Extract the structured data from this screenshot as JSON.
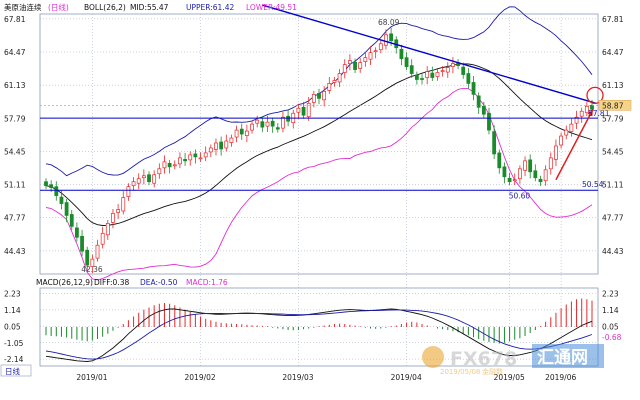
{
  "header": {
    "symbol": "美原油连续",
    "period_tag": "(日线)",
    "boll_label": "BOLL(26,2)",
    "mid": "MID:55.47",
    "upper": "UPPER:61.42",
    "lower": "LOWER:49.51"
  },
  "macd_header": {
    "label": "MACD(26,12,9)",
    "diff": "DIFF:0.38",
    "dea": "DEA:-0.50",
    "macd": "MACD:1.76"
  },
  "footer_tag": "日线",
  "watermark": {
    "brand": "FX678",
    "cn_brand": "汇通网",
    "date": "2019/05/08",
    "sub": "金融数"
  },
  "colors": {
    "up": "#e8282a",
    "down": "#1a8a2a",
    "upper_band": "#1c1ca8",
    "mid_band": "#111111",
    "lower_band": "#e030d0",
    "trend": "#0000cc",
    "arrow": "#e02020",
    "diff": "#111111",
    "dea": "#1c1ca8",
    "grid": "#9aa8c0"
  },
  "chart_data": [
    {
      "type": "candlestick",
      "ylim": [
        42.1,
        68.3
      ],
      "yticks": [
        "67.81",
        "64.47",
        "61.13",
        "57.79",
        "54.45",
        "51.11",
        "47.77",
        "44.43"
      ],
      "xticks": [
        "2019/01",
        "2019/02",
        "2019/03",
        "2019/04",
        "2019/05",
        "2019/06"
      ],
      "close": [
        51.0,
        50.8,
        50.0,
        49.2,
        48.0,
        46.9,
        45.8,
        44.4,
        43.0,
        43.6,
        45.0,
        46.2,
        47.2,
        48.2,
        48.6,
        49.8,
        50.9,
        51.4,
        51.7,
        52.0,
        51.4,
        52.1,
        52.7,
        53.4,
        52.9,
        53.1,
        53.8,
        53.5,
        54.1,
        53.9,
        53.8,
        54.3,
        54.8,
        55.3,
        54.7,
        55.5,
        55.8,
        56.6,
        56.2,
        56.5,
        57.2,
        57.6,
        56.9,
        57.4,
        57.0,
        56.7,
        57.9,
        57.5,
        58.3,
        58.8,
        58.1,
        59.3,
        60.2,
        59.8,
        60.5,
        61.3,
        61.6,
        62.3,
        63.2,
        63.6,
        62.7,
        63.4,
        63.9,
        64.4,
        64.6,
        65.3,
        66.2,
        65.6,
        64.9,
        63.8,
        63.0,
        62.3,
        61.7,
        61.8,
        62.5,
        61.9,
        62.4,
        62.6,
        62.9,
        63.3,
        63.1,
        62.2,
        61.3,
        60.2,
        58.9,
        58.2,
        56.6,
        54.2,
        52.8,
        51.9,
        51.4,
        51.6,
        52.7,
        53.5,
        52.4,
        51.8,
        51.4,
        52.6,
        53.8,
        55.0,
        56.0,
        56.6,
        57.2,
        57.9,
        58.5,
        59.0,
        58.7
      ],
      "x_axis": "trading days, ~7 months",
      "annotations": [
        "68.09",
        "42.36",
        "50.60",
        "50.54",
        "57.81",
        "58.87"
      ],
      "hlines": [
        57.81,
        50.54,
        59.1
      ],
      "series": [
        {
          "name": "UPPER",
          "value": 61.42
        },
        {
          "name": "MID",
          "value": 55.47
        },
        {
          "name": "LOWER",
          "value": 49.51
        }
      ]
    },
    {
      "type": "bar",
      "ylim": [
        -2.6,
        2.6
      ],
      "yticks": [
        "2.23",
        "1.14",
        "0.05",
        "-1.05",
        "-2.14"
      ],
      "right_labels": [
        "2.23",
        "1.14",
        "0.05",
        "-0.68"
      ],
      "values": [
        -0.55,
        -0.6,
        -0.62,
        -0.65,
        -0.7,
        -0.78,
        -0.85,
        -0.9,
        -0.95,
        -0.9,
        -0.8,
        -0.65,
        -0.45,
        -0.25,
        -0.05,
        0.2,
        0.45,
        0.7,
        0.95,
        1.15,
        1.3,
        1.45,
        1.55,
        1.6,
        1.55,
        1.45,
        1.3,
        1.15,
        1.0,
        0.85,
        0.7,
        0.55,
        0.45,
        0.35,
        0.28,
        0.25,
        0.22,
        0.2,
        0.18,
        0.15,
        0.12,
        0.1,
        0.08,
        0.05,
        -0.05,
        -0.1,
        -0.15,
        -0.2,
        -0.22,
        -0.2,
        -0.15,
        -0.1,
        -0.05,
        0.05,
        0.1,
        0.15,
        0.2,
        0.22,
        0.2,
        0.15,
        0.1,
        0.05,
        -0.05,
        -0.1,
        -0.12,
        -0.1,
        -0.05,
        0.05,
        0.1,
        0.2,
        0.3,
        0.35,
        0.3,
        0.2,
        0.1,
        0.0,
        -0.1,
        -0.15,
        -0.2,
        -0.28,
        -0.35,
        -0.45,
        -0.55,
        -0.68,
        -0.8,
        -0.92,
        -1.0,
        -1.05,
        -1.1,
        -1.05,
        -0.95,
        -0.85,
        -0.75,
        -0.6,
        -0.4,
        -0.2,
        0.05,
        0.35,
        0.65,
        0.95,
        1.25,
        1.5,
        1.7,
        1.85,
        1.9,
        1.85,
        1.76
      ],
      "diff": [
        -1.95,
        -2.0,
        -2.05,
        -2.1,
        -2.15,
        -2.2,
        -2.25,
        -2.28,
        -2.3,
        -2.25,
        -2.1,
        -1.9,
        -1.65,
        -1.4,
        -1.1,
        -0.8,
        -0.45,
        -0.15,
        0.15,
        0.45,
        0.7,
        0.9,
        1.05,
        1.15,
        1.2,
        1.2,
        1.15,
        1.1,
        1.05,
        1.0,
        0.95,
        0.9,
        0.88,
        0.85,
        0.85,
        0.86,
        0.88,
        0.9,
        0.92,
        0.93,
        0.92,
        0.9,
        0.88,
        0.85,
        0.82,
        0.8,
        0.78,
        0.76,
        0.76,
        0.78,
        0.8,
        0.84,
        0.88,
        0.93,
        0.98,
        1.03,
        1.08,
        1.12,
        1.15,
        1.16,
        1.15,
        1.13,
        1.1,
        1.1,
        1.12,
        1.15,
        1.18,
        1.2,
        1.18,
        1.12,
        1.05,
        0.98,
        0.9,
        0.82,
        0.72,
        0.6,
        0.45,
        0.3,
        0.12,
        -0.05,
        -0.25,
        -0.45,
        -0.65,
        -0.85,
        -1.05,
        -1.25,
        -1.45,
        -1.6,
        -1.75,
        -1.85,
        -1.9,
        -1.9,
        -1.85,
        -1.78,
        -1.7,
        -1.6,
        -1.45,
        -1.28,
        -1.1,
        -0.9,
        -0.7,
        -0.5,
        -0.3,
        -0.1,
        0.1,
        0.25,
        0.38
      ],
      "dea": [
        -1.6,
        -1.65,
        -1.72,
        -1.8,
        -1.88,
        -1.95,
        -2.02,
        -2.08,
        -2.12,
        -2.14,
        -2.12,
        -2.06,
        -1.96,
        -1.84,
        -1.7,
        -1.52,
        -1.32,
        -1.1,
        -0.88,
        -0.64,
        -0.4,
        -0.18,
        0.04,
        0.24,
        0.4,
        0.55,
        0.65,
        0.74,
        0.8,
        0.85,
        0.88,
        0.9,
        0.9,
        0.9,
        0.9,
        0.89,
        0.89,
        0.89,
        0.89,
        0.9,
        0.9,
        0.9,
        0.9,
        0.89,
        0.88,
        0.87,
        0.86,
        0.84,
        0.83,
        0.82,
        0.82,
        0.82,
        0.83,
        0.85,
        0.87,
        0.9,
        0.93,
        0.96,
        1.0,
        1.03,
        1.05,
        1.07,
        1.08,
        1.09,
        1.1,
        1.11,
        1.12,
        1.13,
        1.14,
        1.14,
        1.13,
        1.11,
        1.09,
        1.06,
        1.02,
        0.96,
        0.9,
        0.82,
        0.72,
        0.6,
        0.46,
        0.3,
        0.14,
        -0.04,
        -0.24,
        -0.44,
        -0.64,
        -0.82,
        -0.98,
        -1.12,
        -1.24,
        -1.34,
        -1.42,
        -1.46,
        -1.48,
        -1.46,
        -1.42,
        -1.36,
        -1.3,
        -1.22,
        -1.14,
        -1.04,
        -0.94,
        -0.84,
        -0.74,
        -0.62,
        -0.5
      ]
    }
  ]
}
